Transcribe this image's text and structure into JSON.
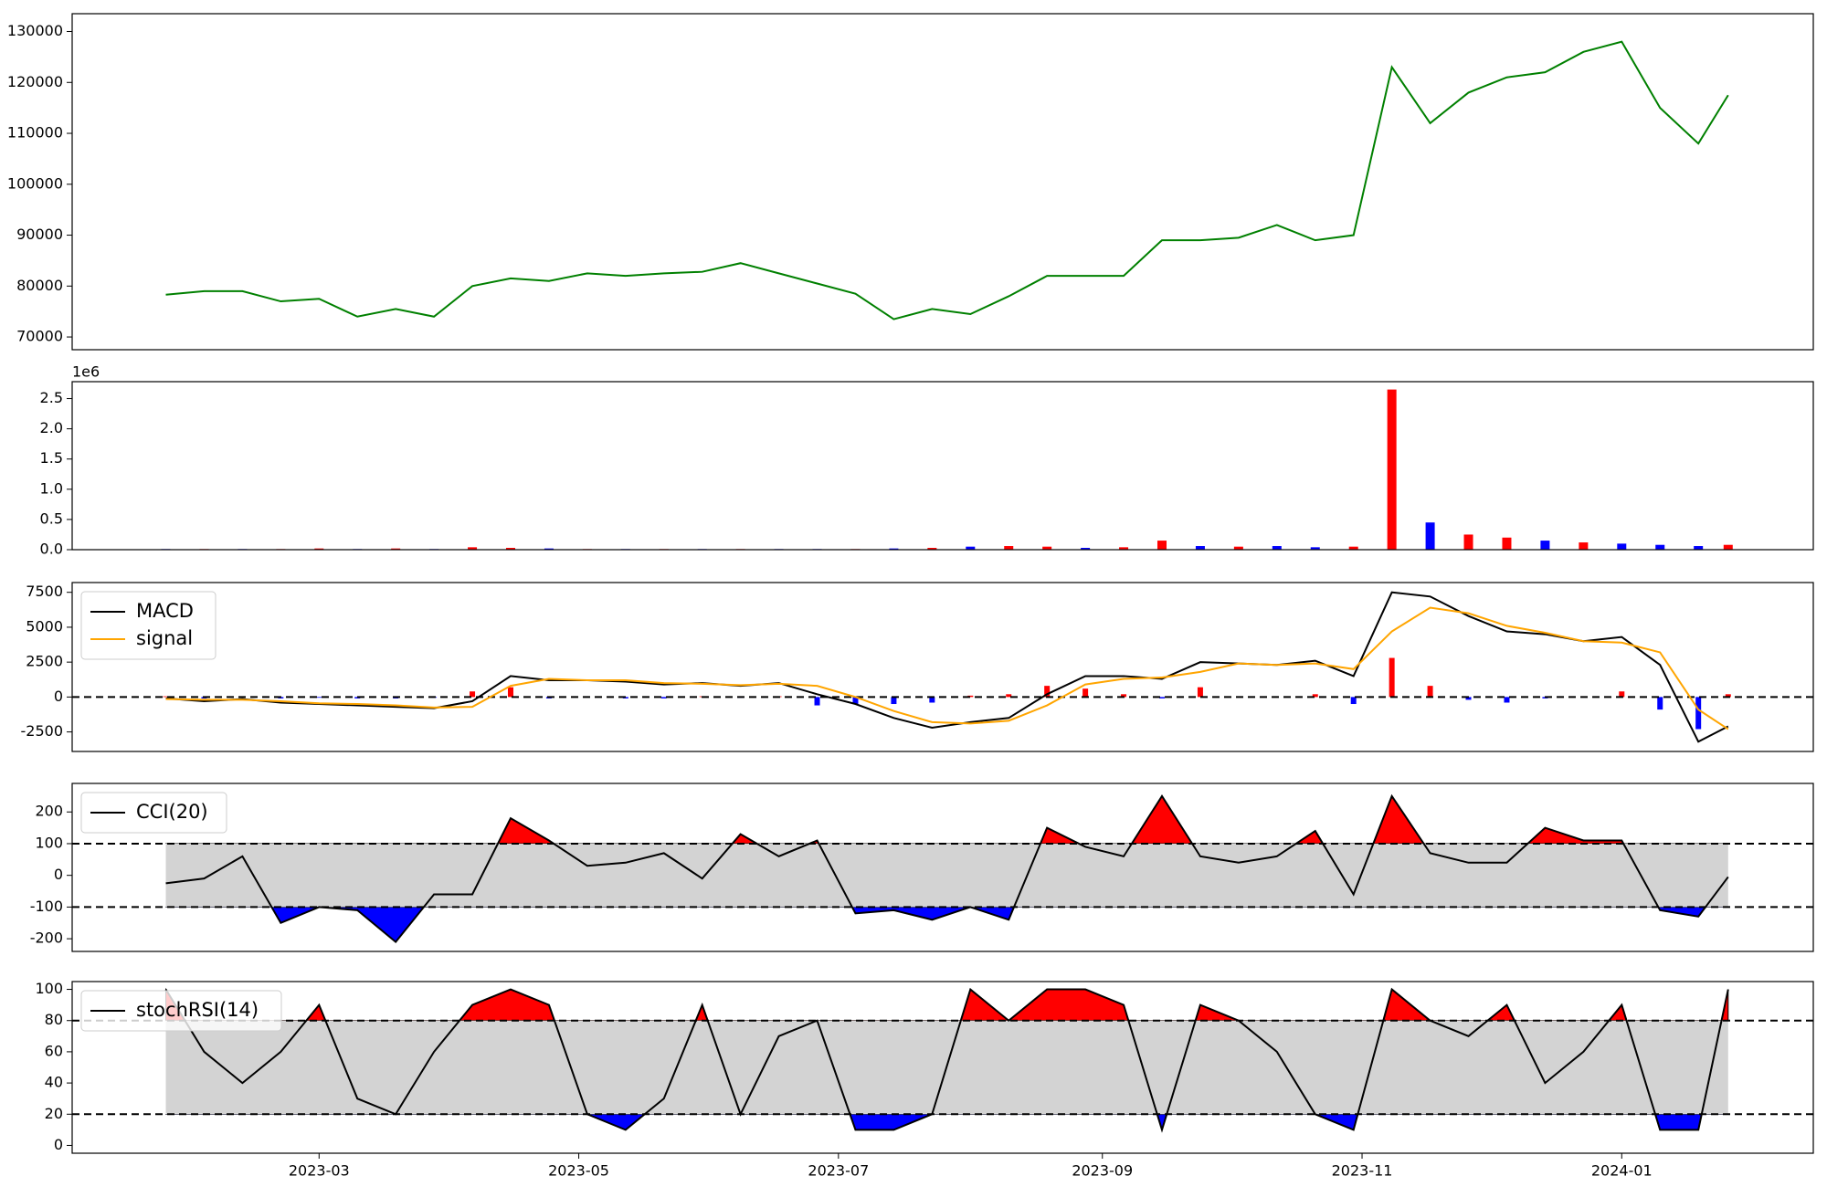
{
  "chart_data": [
    {
      "type": "line",
      "x": [
        "2023-01-24",
        "2023-02-02",
        "2023-02-11",
        "2023-02-20",
        "2023-03-01",
        "2023-03-10",
        "2023-03-19",
        "2023-03-28",
        "2023-04-06",
        "2023-04-15",
        "2023-04-24",
        "2023-05-03",
        "2023-05-12",
        "2023-05-21",
        "2023-05-30",
        "2023-06-08",
        "2023-06-17",
        "2023-06-26",
        "2023-07-05",
        "2023-07-14",
        "2023-07-23",
        "2023-08-01",
        "2023-08-10",
        "2023-08-19",
        "2023-08-28",
        "2023-09-06",
        "2023-09-15",
        "2023-09-24",
        "2023-10-03",
        "2023-10-12",
        "2023-10-21",
        "2023-10-30",
        "2023-11-08",
        "2023-11-17",
        "2023-11-26",
        "2023-12-05",
        "2023-12-14",
        "2023-12-23",
        "2024-01-01",
        "2024-01-10",
        "2024-01-19",
        "2024-01-26"
      ],
      "xlim": [
        "2023-01-02",
        "2024-02-15"
      ],
      "ylim": [
        67500,
        133500
      ],
      "yticks": [
        70000,
        80000,
        90000,
        100000,
        110000,
        120000,
        130000
      ],
      "series": [
        {
          "color": "green",
          "values": [
            78300,
            79000,
            79000,
            77000,
            77500,
            74000,
            75500,
            74000,
            80000,
            81500,
            81000,
            82500,
            82000,
            82500,
            82800,
            84500,
            82500,
            80500,
            78500,
            73500,
            75500,
            74500,
            78000,
            82000,
            82000,
            82000,
            89000,
            89000,
            89500,
            92000,
            89000,
            90000,
            123000,
            112000,
            118000,
            121000,
            122000,
            126000,
            128000,
            115000,
            108000,
            117500
          ]
        }
      ]
    },
    {
      "type": "bar",
      "x": [
        "2023-01-24",
        "2023-02-02",
        "2023-02-11",
        "2023-02-20",
        "2023-03-01",
        "2023-03-10",
        "2023-03-19",
        "2023-03-28",
        "2023-04-06",
        "2023-04-15",
        "2023-04-24",
        "2023-05-03",
        "2023-05-12",
        "2023-05-21",
        "2023-05-30",
        "2023-06-08",
        "2023-06-17",
        "2023-06-26",
        "2023-07-05",
        "2023-07-14",
        "2023-07-23",
        "2023-08-01",
        "2023-08-10",
        "2023-08-19",
        "2023-08-28",
        "2023-09-06",
        "2023-09-15",
        "2023-09-24",
        "2023-10-03",
        "2023-10-12",
        "2023-10-21",
        "2023-10-30",
        "2023-11-08",
        "2023-11-17",
        "2023-11-26",
        "2023-12-05",
        "2023-12-14",
        "2023-12-23",
        "2024-01-01",
        "2024-01-10",
        "2024-01-19",
        "2024-01-26"
      ],
      "xlim": [
        "2023-01-02",
        "2024-02-15"
      ],
      "offset_label": "1e6",
      "ylim": [
        0,
        2.78
      ],
      "yticks": [
        {
          "value": 0,
          "label": "0.0"
        },
        0.5,
        {
          "value": 1,
          "label": "1.0"
        },
        1.5,
        {
          "value": 2,
          "label": "2.0"
        },
        2.5
      ],
      "values": [
        0.01,
        0.01,
        0.01,
        0.01,
        0.02,
        0.01,
        0.02,
        0.01,
        0.04,
        0.03,
        0.02,
        0.01,
        0.01,
        0.01,
        0.01,
        0.01,
        0.01,
        0.01,
        0.01,
        0.02,
        0.03,
        0.05,
        0.06,
        0.05,
        0.03,
        0.04,
        0.15,
        0.06,
        0.05,
        0.06,
        0.04,
        0.05,
        2.65,
        0.45,
        0.25,
        0.2,
        0.15,
        0.12,
        0.1,
        0.08,
        0.06,
        0.08
      ],
      "colors": [
        "blue",
        "red",
        "blue",
        "red",
        "red",
        "blue",
        "red",
        "blue",
        "red",
        "red",
        "blue",
        "red",
        "blue",
        "red",
        "blue",
        "red",
        "blue",
        "blue",
        "red",
        "blue",
        "red",
        "blue",
        "red",
        "red",
        "blue",
        "red",
        "red",
        "blue",
        "red",
        "blue",
        "blue",
        "red",
        "red",
        "blue",
        "red",
        "red",
        "blue",
        "red",
        "blue",
        "blue",
        "blue",
        "red"
      ]
    },
    {
      "type": "line",
      "x": [
        "2023-01-24",
        "2023-02-02",
        "2023-02-11",
        "2023-02-20",
        "2023-03-01",
        "2023-03-10",
        "2023-03-19",
        "2023-03-28",
        "2023-04-06",
        "2023-04-15",
        "2023-04-24",
        "2023-05-03",
        "2023-05-12",
        "2023-05-21",
        "2023-05-30",
        "2023-06-08",
        "2023-06-17",
        "2023-06-26",
        "2023-07-05",
        "2023-07-14",
        "2023-07-23",
        "2023-08-01",
        "2023-08-10",
        "2023-08-19",
        "2023-08-28",
        "2023-09-06",
        "2023-09-15",
        "2023-09-24",
        "2023-10-03",
        "2023-10-12",
        "2023-10-21",
        "2023-10-30",
        "2023-11-08",
        "2023-11-17",
        "2023-11-26",
        "2023-12-05",
        "2023-12-14",
        "2023-12-23",
        "2024-01-01",
        "2024-01-10",
        "2024-01-19",
        "2024-01-26"
      ],
      "xlim": [
        "2023-01-02",
        "2024-02-15"
      ],
      "ylim": [
        -3900,
        8200
      ],
      "yticks": [
        -2500,
        0,
        2500,
        5000,
        7500
      ],
      "hlines": [
        0
      ],
      "legend": "upper left",
      "series": [
        {
          "name": "MACD",
          "color": "black",
          "values": [
            -100,
            -300,
            -150,
            -400,
            -500,
            -600,
            -700,
            -800,
            -300,
            1500,
            1200,
            1200,
            1100,
            900,
            1000,
            800,
            1000,
            200,
            -500,
            -1500,
            -2200,
            -1800,
            -1500,
            200,
            1500,
            1500,
            1300,
            2500,
            2400,
            2300,
            2600,
            1500,
            7500,
            7200,
            5800,
            4700,
            4500,
            4000,
            4300,
            2300,
            -3200,
            -2100
          ]
        },
        {
          "name": "signal",
          "color": "#ffa500",
          "values": [
            -150,
            -200,
            -200,
            -300,
            -450,
            -500,
            -600,
            -750,
            -700,
            800,
            1300,
            1200,
            1200,
            1000,
            950,
            850,
            950,
            800,
            0,
            -1000,
            -1800,
            -1900,
            -1700,
            -600,
            900,
            1300,
            1400,
            1800,
            2400,
            2300,
            2400,
            2000,
            4700,
            6400,
            6000,
            5100,
            4600,
            4000,
            3900,
            3200,
            -900,
            -2300
          ]
        }
      ],
      "histogram": {
        "up_color": "red",
        "down_color": "blue",
        "values": [
          50,
          -100,
          50,
          -100,
          -50,
          -100,
          -100,
          -50,
          400,
          700,
          -100,
          0,
          -100,
          -100,
          50,
          -50,
          50,
          -600,
          -500,
          -500,
          -400,
          100,
          200,
          800,
          600,
          200,
          -100,
          700,
          0,
          0,
          200,
          -500,
          2800,
          800,
          -200,
          -400,
          -100,
          0,
          400,
          -900,
          -2300,
          200
        ]
      }
    },
    {
      "type": "line",
      "x": [
        "2023-01-24",
        "2023-02-02",
        "2023-02-11",
        "2023-02-20",
        "2023-03-01",
        "2023-03-10",
        "2023-03-19",
        "2023-03-28",
        "2023-04-06",
        "2023-04-15",
        "2023-04-24",
        "2023-05-03",
        "2023-05-12",
        "2023-05-21",
        "2023-05-30",
        "2023-06-08",
        "2023-06-17",
        "2023-06-26",
        "2023-07-05",
        "2023-07-14",
        "2023-07-23",
        "2023-08-01",
        "2023-08-10",
        "2023-08-19",
        "2023-08-28",
        "2023-09-06",
        "2023-09-15",
        "2023-09-24",
        "2023-10-03",
        "2023-10-12",
        "2023-10-21",
        "2023-10-30",
        "2023-11-08",
        "2023-11-17",
        "2023-11-26",
        "2023-12-05",
        "2023-12-14",
        "2023-12-23",
        "2024-01-01",
        "2024-01-10",
        "2024-01-19",
        "2024-01-26"
      ],
      "xlim": [
        "2023-01-02",
        "2024-02-15"
      ],
      "ylim": [
        -240,
        290
      ],
      "yticks": [
        -200,
        -100,
        0,
        100,
        200
      ],
      "hlines": [
        -100,
        100
      ],
      "band_color": "lightgray",
      "above_color": "red",
      "below_color": "blue",
      "legend": "upper left",
      "series": [
        {
          "name": "CCI(20)",
          "color": "black",
          "values": [
            -25,
            -10,
            60,
            -150,
            -100,
            -110,
            -210,
            -60,
            -60,
            180,
            110,
            30,
            40,
            70,
            -10,
            130,
            60,
            110,
            -120,
            -110,
            -140,
            -100,
            -140,
            150,
            90,
            60,
            250,
            60,
            40,
            60,
            140,
            -60,
            250,
            70,
            40,
            40,
            150,
            110,
            110,
            -110,
            -130,
            -5
          ]
        }
      ]
    },
    {
      "type": "line",
      "x": [
        "2023-01-24",
        "2023-02-02",
        "2023-02-11",
        "2023-02-20",
        "2023-03-01",
        "2023-03-10",
        "2023-03-19",
        "2023-03-28",
        "2023-04-06",
        "2023-04-15",
        "2023-04-24",
        "2023-05-03",
        "2023-05-12",
        "2023-05-21",
        "2023-05-30",
        "2023-06-08",
        "2023-06-17",
        "2023-06-26",
        "2023-07-05",
        "2023-07-14",
        "2023-07-23",
        "2023-08-01",
        "2023-08-10",
        "2023-08-19",
        "2023-08-28",
        "2023-09-06",
        "2023-09-15",
        "2023-09-24",
        "2023-10-03",
        "2023-10-12",
        "2023-10-21",
        "2023-10-30",
        "2023-11-08",
        "2023-11-17",
        "2023-11-26",
        "2023-12-05",
        "2023-12-14",
        "2023-12-23",
        "2024-01-01",
        "2024-01-10",
        "2024-01-19",
        "2024-01-26"
      ],
      "xlim": [
        "2023-01-02",
        "2024-02-15"
      ],
      "xticks": [
        {
          "value": "2023-03-01",
          "label": "2023-03"
        },
        {
          "value": "2023-05-01",
          "label": "2023-05"
        },
        {
          "value": "2023-07-01",
          "label": "2023-07"
        },
        {
          "value": "2023-09-01",
          "label": "2023-09"
        },
        {
          "value": "2023-11-01",
          "label": "2023-11"
        },
        {
          "value": "2024-01-01",
          "label": "2024-01"
        }
      ],
      "ylim": [
        -5,
        105
      ],
      "yticks": [
        0,
        20,
        40,
        60,
        80,
        100
      ],
      "hlines": [
        20,
        80
      ],
      "band_color": "lightgray",
      "above_color": "red",
      "below_color": "blue",
      "legend": "upper left",
      "series": [
        {
          "name": "stochRSI(14)",
          "color": "black",
          "values": [
            100,
            60,
            40,
            60,
            90,
            30,
            20,
            60,
            90,
            100,
            90,
            20,
            10,
            30,
            90,
            20,
            70,
            80,
            10,
            10,
            20,
            100,
            80,
            100,
            100,
            90,
            10,
            90,
            80,
            60,
            20,
            10,
            100,
            80,
            70,
            90,
            40,
            60,
            90,
            10,
            10,
            100
          ]
        }
      ]
    }
  ]
}
